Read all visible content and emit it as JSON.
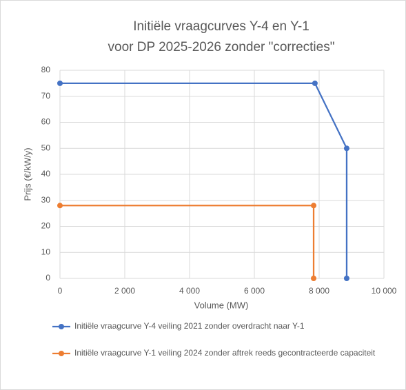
{
  "chart_data": {
    "type": "line",
    "title": [
      "Initiële vraagcurves Y-4 en Y-1",
      "voor DP 2025-2026 zonder \"correcties\""
    ],
    "x_label": "Volume (MW)",
    "y_label": "Prijs (€/kW/y)",
    "series": [
      {
        "name": "Initiële vraagcurve Y-4 veiling 2021 zonder overdracht naar Y-1",
        "color": "#4472c4",
        "x": [
          0,
          7870,
          8850,
          8850
        ],
        "values": [
          75,
          75,
          50,
          0
        ]
      },
      {
        "name": "Initiële vraagcurve Y-1 veiling 2024 zonder aftrek reeds gecontracteerde capaciteit",
        "color": "#ed7d31",
        "x": [
          0,
          7830,
          7830
        ],
        "values": [
          28,
          28,
          0
        ]
      }
    ],
    "xlim": [
      0,
      10000
    ],
    "xticks": [
      0,
      {
        "value": 2000,
        "label": "2 000"
      },
      {
        "value": 4000,
        "label": "4 000"
      },
      {
        "value": 6000,
        "label": "6 000"
      },
      {
        "value": 8000,
        "label": "8 000"
      },
      {
        "value": 10000,
        "label": "10 000"
      }
    ],
    "ylim": [
      0,
      80
    ],
    "yticks": [
      0,
      10,
      20,
      30,
      40,
      50,
      60,
      70,
      80
    ],
    "grid": true,
    "legend": "bottom"
  }
}
